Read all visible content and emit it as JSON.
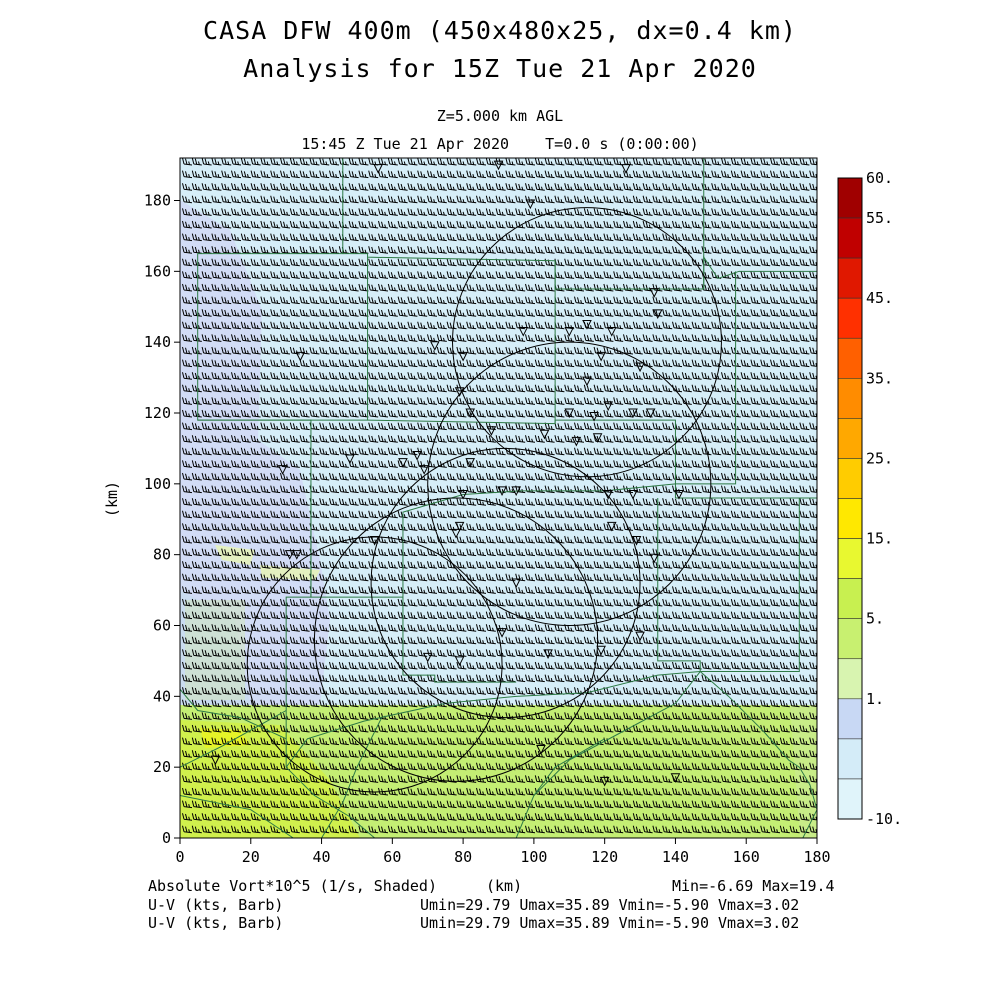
{
  "header": {
    "title_line1": "CASA DFW 400m (450x480x25, dx=0.4 km)",
    "title_line2": "Analysis for 15Z Tue 21 Apr 2020",
    "level": "Z=5.000 km AGL",
    "time": "15:45 Z Tue 21 Apr 2020    T=0.0 s (0:00:00)"
  },
  "axes": {
    "x_label": "(km)",
    "y_label": "(km)",
    "x_ticks": [
      "0",
      "20",
      "40",
      "60",
      "80",
      "100",
      "120",
      "140",
      "160",
      "180"
    ],
    "y_ticks": [
      "0",
      "20",
      "40",
      "60",
      "80",
      "100",
      "120",
      "140",
      "160",
      "180"
    ],
    "x_range": [
      0,
      180
    ],
    "y_range": [
      0,
      192
    ]
  },
  "colorbar": {
    "labels": [
      "60.",
      "55.",
      "45.",
      "35.",
      "25.",
      "15.",
      "5.",
      "1.",
      "-10."
    ],
    "colors": [
      "#a00000",
      "#c00000",
      "#e01800",
      "#ff3000",
      "#ff6000",
      "#ff8c00",
      "#ffa800",
      "#ffcc00",
      "#ffe800",
      "#e8f830",
      "#c8f050",
      "#c8f070",
      "#d8f4b0",
      "#c8d8f4",
      "#d4ecf8",
      "#e0f4fa"
    ]
  },
  "footer": {
    "field_label": "Absolute Vort*10^5 (1/s, Shaded)",
    "unit_label": "(km)",
    "minmax": "Min=-6.69 Max=19.4",
    "wind1_label": "U-V (kts, Barb)",
    "wind1_stats": "Umin=29.79 Umax=35.89 Vmin=-5.90 Vmax=3.02",
    "wind2_label": "U-V (kts, Barb)",
    "wind2_stats": "Umin=29.79 Umax=35.89 Vmin=-5.90 Vmax=3.02"
  },
  "map": {
    "radar_rings_km": [
      {
        "x": 55,
        "y": 49,
        "r": 36
      },
      {
        "x": 78,
        "y": 56,
        "r": 40
      },
      {
        "x": 92,
        "y": 72,
        "r": 38
      },
      {
        "x": 110,
        "y": 100,
        "r": 40
      },
      {
        "x": 115,
        "y": 140,
        "r": 38
      }
    ],
    "stations_km": [
      [
        56,
        189
      ],
      [
        90,
        190
      ],
      [
        126,
        189
      ],
      [
        99,
        179
      ],
      [
        134,
        154
      ],
      [
        97,
        143
      ],
      [
        110,
        143
      ],
      [
        115,
        145
      ],
      [
        122,
        143
      ],
      [
        135,
        148
      ],
      [
        72,
        139
      ],
      [
        80,
        136
      ],
      [
        34,
        136
      ],
      [
        119,
        136
      ],
      [
        130,
        133
      ],
      [
        115,
        129
      ],
      [
        79,
        126
      ],
      [
        82,
        120
      ],
      [
        88,
        115
      ],
      [
        110,
        120
      ],
      [
        117,
        119
      ],
      [
        121,
        122
      ],
      [
        128,
        120
      ],
      [
        133,
        120
      ],
      [
        48,
        107
      ],
      [
        63,
        106
      ],
      [
        67,
        108
      ],
      [
        69,
        104
      ],
      [
        82,
        106
      ],
      [
        103,
        114
      ],
      [
        112,
        112
      ],
      [
        118,
        113
      ],
      [
        29,
        104
      ],
      [
        80,
        97
      ],
      [
        91,
        98
      ],
      [
        95,
        98
      ],
      [
        121,
        97
      ],
      [
        128,
        97
      ],
      [
        141,
        97
      ],
      [
        79,
        88
      ],
      [
        78,
        86
      ],
      [
        55,
        84
      ],
      [
        122,
        88
      ],
      [
        129,
        84
      ],
      [
        134,
        79
      ],
      [
        31,
        80
      ],
      [
        33,
        80
      ],
      [
        95,
        72
      ],
      [
        91,
        58
      ],
      [
        104,
        52
      ],
      [
        119,
        53
      ],
      [
        130,
        57
      ],
      [
        70,
        51
      ],
      [
        79,
        50
      ],
      [
        102,
        25
      ],
      [
        120,
        16
      ],
      [
        140,
        17
      ],
      [
        10,
        22
      ]
    ],
    "counties_km": [
      [
        [
          46,
          192
        ],
        [
          46,
          165
        ],
        [
          5,
          165
        ],
        [
          5,
          118
        ],
        [
          37,
          118
        ],
        [
          37,
          68
        ],
        [
          30,
          68
        ],
        [
          30,
          20
        ]
      ],
      [
        [
          46,
          165
        ],
        [
          53,
          165
        ],
        [
          53,
          164
        ],
        [
          106,
          163
        ],
        [
          106,
          155
        ],
        [
          148,
          155
        ],
        [
          148,
          164
        ],
        [
          152,
          158
        ],
        [
          158,
          160
        ],
        [
          180,
          160
        ]
      ],
      [
        [
          148,
          192
        ],
        [
          148,
          155
        ]
      ],
      [
        [
          53,
          164
        ],
        [
          53,
          118
        ],
        [
          5,
          118
        ]
      ],
      [
        [
          53,
          118
        ],
        [
          106,
          117
        ],
        [
          106,
          163
        ]
      ],
      [
        [
          106,
          117
        ],
        [
          106,
          118
        ],
        [
          140,
          118
        ],
        [
          140,
          100
        ],
        [
          157,
          100
        ],
        [
          157,
          160
        ]
      ],
      [
        [
          140,
          100
        ],
        [
          140,
          96
        ],
        [
          180,
          96
        ]
      ],
      [
        [
          37,
          100
        ],
        [
          37,
          68
        ],
        [
          63,
          68
        ],
        [
          63,
          92
        ],
        [
          80,
          97
        ],
        [
          96,
          98
        ],
        [
          120,
          98
        ],
        [
          140,
          100
        ]
      ],
      [
        [
          135,
          96
        ],
        [
          135,
          50
        ],
        [
          147,
          50
        ],
        [
          147,
          47
        ],
        [
          175,
          47
        ],
        [
          175,
          96
        ]
      ],
      [
        [
          63,
          68
        ],
        [
          63,
          46
        ],
        [
          72,
          46
        ],
        [
          72,
          44
        ],
        [
          95,
          44
        ]
      ],
      [
        [
          30,
          20
        ],
        [
          36,
          28
        ],
        [
          52,
          33
        ],
        [
          75,
          38
        ],
        [
          95,
          40
        ],
        [
          115,
          41
        ],
        [
          135,
          46
        ],
        [
          147,
          47
        ]
      ],
      [
        [
          0,
          42
        ],
        [
          5,
          36
        ],
        [
          17,
          34
        ],
        [
          30,
          28
        ]
      ],
      [
        [
          0,
          20
        ],
        [
          12,
          26
        ],
        [
          30,
          36
        ]
      ],
      [
        [
          0,
          12
        ],
        [
          20,
          8
        ],
        [
          32,
          0
        ]
      ],
      [
        [
          30,
          20
        ],
        [
          38,
          12
        ],
        [
          48,
          6
        ],
        [
          55,
          0
        ]
      ],
      [
        [
          95,
          0
        ],
        [
          100,
          12
        ],
        [
          110,
          22
        ],
        [
          125,
          30
        ],
        [
          140,
          38
        ],
        [
          147,
          47
        ]
      ],
      [
        [
          100,
          12
        ],
        [
          106,
          20
        ],
        [
          120,
          28
        ]
      ],
      [
        [
          147,
          47
        ],
        [
          155,
          40
        ],
        [
          165,
          30
        ],
        [
          172,
          22
        ],
        [
          175,
          20
        ],
        [
          178,
          15
        ],
        [
          180,
          8
        ],
        [
          176,
          0
        ]
      ],
      [
        [
          40,
          0
        ],
        [
          46,
          10
        ],
        [
          50,
          20
        ],
        [
          54,
          28
        ],
        [
          57,
          34
        ]
      ]
    ]
  }
}
